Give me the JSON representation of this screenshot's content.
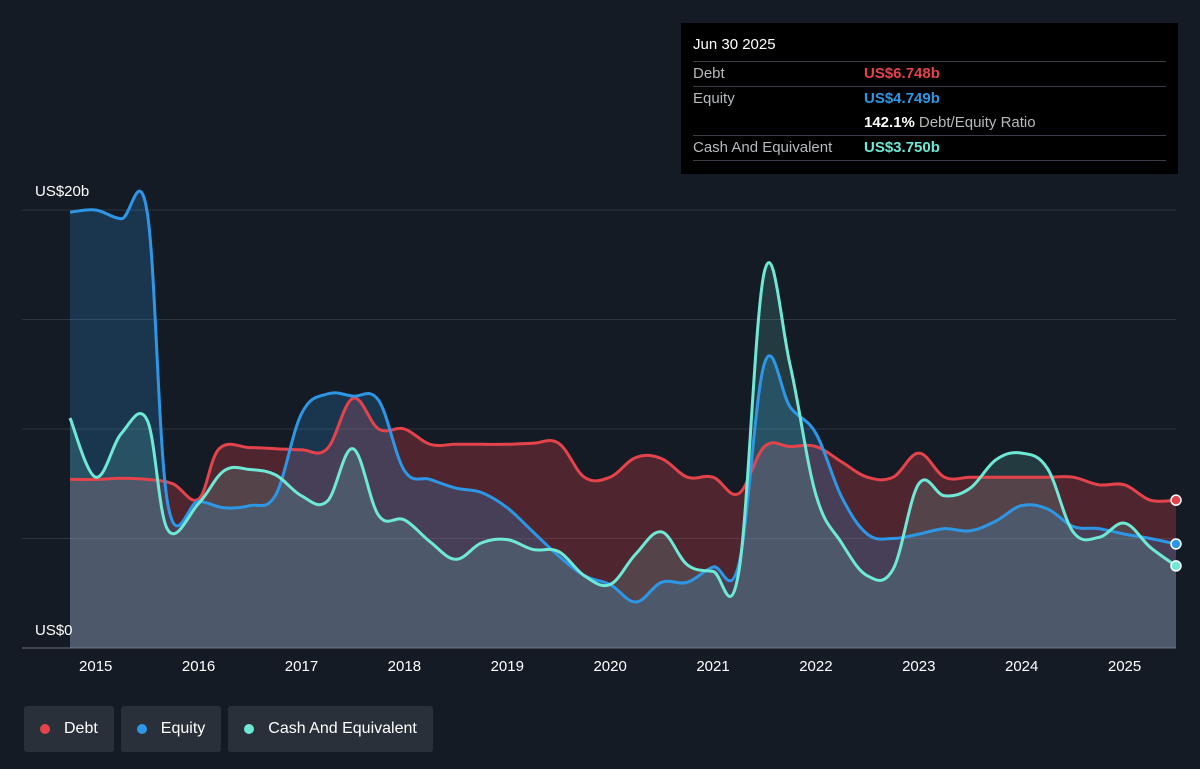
{
  "tooltip": {
    "date": "Jun 30 2025",
    "debt_label": "Debt",
    "debt_value": "US$6.748b",
    "equity_label": "Equity",
    "equity_value": "US$4.749b",
    "ratio_value": "142.1%",
    "ratio_label": "Debt/Equity Ratio",
    "cash_label": "Cash And Equivalent",
    "cash_value": "US$3.750b"
  },
  "colors": {
    "debt": "#e5434b",
    "equity": "#2d97e6",
    "cash": "#6fe8d6",
    "background": "#151b24"
  },
  "legend": [
    {
      "label": "Debt",
      "color": "#e5434b"
    },
    {
      "label": "Equity",
      "color": "#2d97e6"
    },
    {
      "label": "Cash And Equivalent",
      "color": "#6fe8d6"
    }
  ],
  "chart_data": {
    "type": "area",
    "ylabel_top": "US$20b",
    "ylabel_bottom": "US$0",
    "ylim": [
      0,
      20
    ],
    "xlim": [
      2014.75,
      2025.5
    ],
    "x_ticks": [
      "2015",
      "2016",
      "2017",
      "2018",
      "2019",
      "2020",
      "2021",
      "2022",
      "2023",
      "2024",
      "2025"
    ],
    "grid": true,
    "series": [
      {
        "name": "Debt",
        "x": [
          2014.75,
          2015.0,
          2015.25,
          2015.5,
          2015.75,
          2016.0,
          2016.2,
          2016.5,
          2016.75,
          2017.0,
          2017.25,
          2017.5,
          2017.75,
          2018.0,
          2018.25,
          2018.5,
          2018.75,
          2019.0,
          2019.25,
          2019.5,
          2019.75,
          2020.0,
          2020.25,
          2020.5,
          2020.75,
          2021.0,
          2021.25,
          2021.5,
          2021.75,
          2022.0,
          2022.25,
          2022.5,
          2022.75,
          2023.0,
          2023.25,
          2023.5,
          2023.75,
          2024.0,
          2024.25,
          2024.5,
          2024.75,
          2025.0,
          2025.25,
          2025.5
        ],
        "values": [
          7.7,
          7.7,
          7.75,
          7.7,
          7.5,
          6.8,
          9.1,
          9.15,
          9.1,
          9.05,
          9.1,
          11.4,
          10.0,
          10.0,
          9.3,
          9.3,
          9.3,
          9.3,
          9.35,
          9.35,
          7.8,
          7.8,
          8.7,
          8.65,
          7.8,
          7.8,
          7.05,
          9.2,
          9.2,
          9.2,
          8.5,
          7.8,
          7.8,
          8.9,
          7.8,
          7.8,
          7.8,
          7.8,
          7.8,
          7.8,
          7.45,
          7.45,
          6.75,
          6.75
        ]
      },
      {
        "name": "Equity",
        "x": [
          2014.75,
          2015.0,
          2015.25,
          2015.5,
          2015.7,
          2016.0,
          2016.25,
          2016.5,
          2016.75,
          2017.0,
          2017.25,
          2017.5,
          2017.75,
          2018.0,
          2018.25,
          2018.5,
          2018.75,
          2019.0,
          2019.25,
          2019.5,
          2019.75,
          2020.0,
          2020.25,
          2020.5,
          2020.75,
          2021.0,
          2021.25,
          2021.5,
          2021.75,
          2022.0,
          2022.25,
          2022.5,
          2022.75,
          2023.0,
          2023.25,
          2023.5,
          2023.75,
          2024.0,
          2024.25,
          2024.5,
          2024.75,
          2025.0,
          2025.25,
          2025.5
        ],
        "values": [
          19.9,
          20.0,
          19.6,
          19.9,
          6.6,
          6.7,
          6.4,
          6.5,
          7.0,
          10.7,
          11.6,
          11.5,
          11.3,
          8.1,
          7.7,
          7.3,
          7.1,
          6.4,
          5.3,
          4.2,
          3.3,
          2.9,
          2.1,
          3.0,
          3.0,
          3.7,
          3.8,
          13.0,
          11.0,
          9.8,
          6.9,
          5.2,
          5.0,
          5.2,
          5.45,
          5.35,
          5.8,
          6.5,
          6.35,
          5.55,
          5.45,
          5.2,
          5.0,
          4.75
        ]
      },
      {
        "name": "Cash And Equivalent",
        "x": [
          2014.75,
          2015.0,
          2015.25,
          2015.5,
          2015.7,
          2016.0,
          2016.25,
          2016.5,
          2016.75,
          2017.0,
          2017.25,
          2017.5,
          2017.75,
          2018.0,
          2018.25,
          2018.5,
          2018.75,
          2019.0,
          2019.25,
          2019.5,
          2019.75,
          2020.0,
          2020.25,
          2020.5,
          2020.75,
          2021.0,
          2021.25,
          2021.5,
          2021.75,
          2022.0,
          2022.25,
          2022.5,
          2022.75,
          2023.0,
          2023.25,
          2023.5,
          2023.75,
          2024.0,
          2024.25,
          2024.5,
          2024.75,
          2025.0,
          2025.25,
          2025.5
        ],
        "values": [
          10.5,
          7.8,
          9.8,
          10.4,
          5.4,
          6.6,
          8.1,
          8.15,
          7.9,
          6.95,
          6.7,
          9.1,
          6.05,
          5.85,
          4.85,
          4.05,
          4.8,
          4.95,
          4.5,
          4.4,
          3.3,
          2.9,
          4.3,
          5.3,
          3.8,
          3.5,
          3.45,
          17.2,
          12.9,
          7.0,
          4.8,
          3.3,
          3.6,
          7.5,
          6.95,
          7.3,
          8.6,
          8.9,
          8.2,
          5.3,
          5.05,
          5.7,
          4.6,
          3.75
        ]
      }
    ]
  }
}
